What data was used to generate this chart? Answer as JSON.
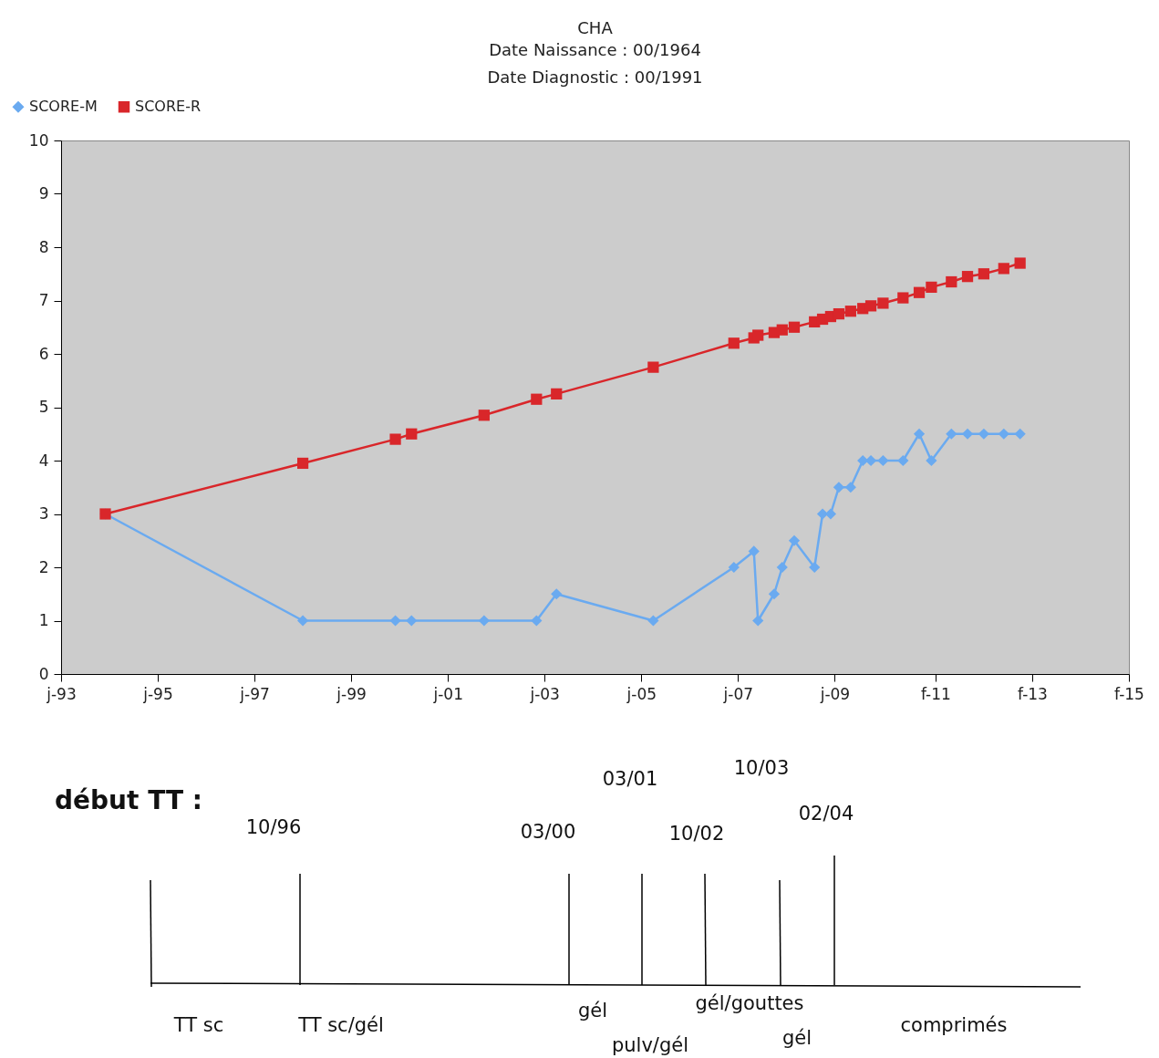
{
  "chart_data": {
    "type": "line",
    "title": "CHA",
    "subtitle": "Date Naissance  : 00/1964\nDate Diagnostic  : 00/1991",
    "x": [
      "1993-12",
      "1998-01",
      "1999-12",
      "2000-04",
      "2001-10",
      "2002-11",
      "2003-04",
      "2005-04",
      "2006-12",
      "2007-05",
      "2007-06",
      "2007-10",
      "2007-12",
      "2008-03",
      "2008-08",
      "2008-10",
      "2008-12",
      "2009-02",
      "2009-05",
      "2009-08",
      "2009-10",
      "2010-01",
      "2010-06",
      "2010-10",
      "2011-01",
      "2011-06",
      "2011-10",
      "2012-02",
      "2012-07",
      "2012-11"
    ],
    "series": [
      {
        "name": "SCORE-M",
        "color": "#6aaaf0",
        "marker": "diamond",
        "values": [
          3,
          1,
          1,
          1,
          1,
          1,
          1.5,
          1,
          2,
          2.3,
          1,
          1.5,
          2,
          2.5,
          2,
          3,
          3,
          3.5,
          3.5,
          4,
          4,
          4,
          4,
          4.5,
          4,
          4.5,
          4.5,
          4.5,
          4.5,
          4.5
        ]
      },
      {
        "name": "SCORE-R",
        "color": "#d9262a",
        "marker": "square",
        "values": [
          3,
          3.95,
          4.4,
          4.5,
          4.85,
          5.15,
          5.25,
          5.75,
          6.2,
          6.3,
          6.35,
          6.4,
          6.45,
          6.5,
          6.6,
          6.65,
          6.7,
          6.75,
          6.8,
          6.85,
          6.9,
          6.95,
          7.05,
          7.15,
          7.25,
          7.35,
          7.45,
          7.5,
          7.6,
          7.7
        ]
      }
    ],
    "xlim": [
      "1993-01",
      "2015-02"
    ],
    "xticks": [
      {
        "value": "1993-01",
        "label": "j-93"
      },
      {
        "value": "1995-01",
        "label": "j-95"
      },
      {
        "value": "1997-01",
        "label": "j-97"
      },
      {
        "value": "1999-01",
        "label": "j-99"
      },
      {
        "value": "2001-01",
        "label": "j-01"
      },
      {
        "value": "2003-01",
        "label": "j-03"
      },
      {
        "value": "2005-01",
        "label": "j-05"
      },
      {
        "value": "2007-01",
        "label": "j-07"
      },
      {
        "value": "2009-01",
        "label": "j-09"
      },
      {
        "value": "2011-02",
        "label": "f-11"
      },
      {
        "value": "2013-02",
        "label": "f-13"
      },
      {
        "value": "2015-02",
        "label": "f-15"
      }
    ],
    "ylim": [
      0,
      10
    ],
    "yticks": [
      0,
      1,
      2,
      3,
      4,
      5,
      6,
      7,
      8,
      9,
      10
    ],
    "grid": false,
    "legend": "top left",
    "annotations": [
      "début TT :",
      "10/96",
      "03/00",
      "03/01",
      "10/02",
      "10/03",
      "02/04",
      "TT sc",
      "TT sc/gél",
      "gél",
      "pulv/gél",
      "gél/gouttes",
      "gél",
      "comprimés"
    ]
  }
}
